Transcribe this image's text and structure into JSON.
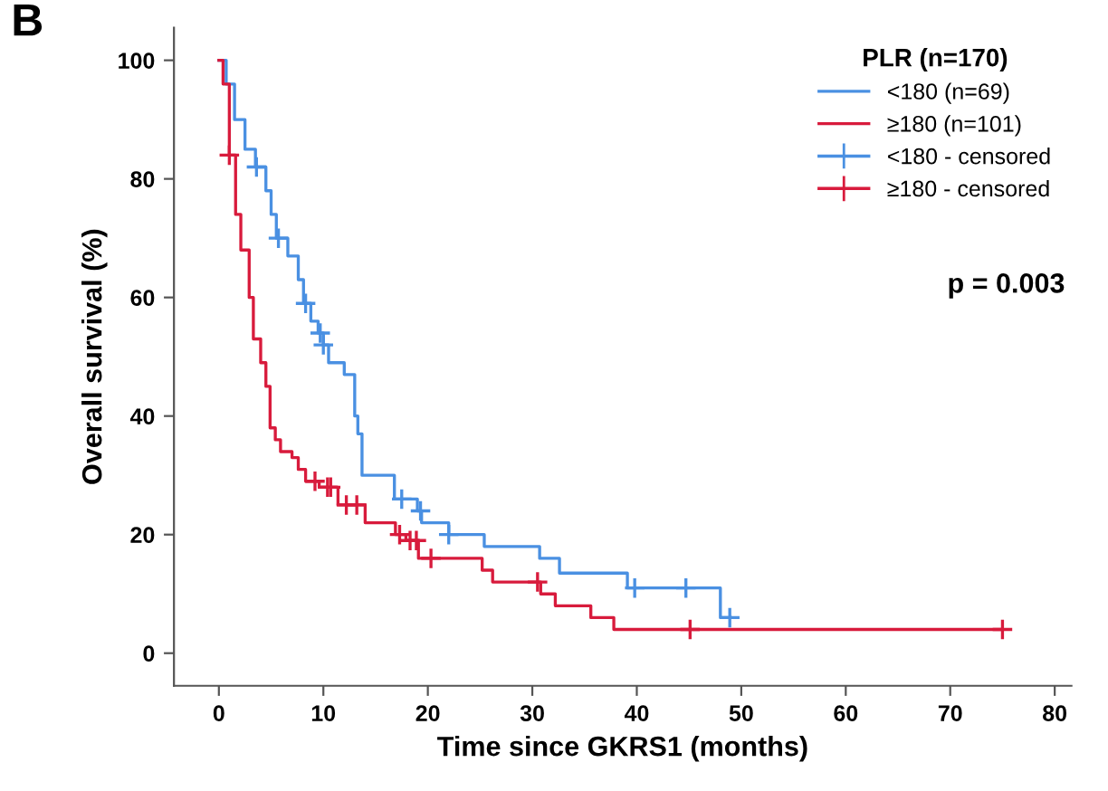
{
  "chart_data": {
    "type": "step",
    "xlabel": "Time since GKRS1 (months)",
    "ylabel": "Overall survival (%)",
    "legend_title": "PLR (n=170)",
    "annotations": [
      "B",
      "p = 0.003"
    ],
    "series": [
      {
        "name": "<180 (n=69)",
        "color": "#4a90e2",
        "x": [
          0,
          0.7,
          1.5,
          2.5,
          3.5,
          4.5,
          5.0,
          5.5,
          6.6,
          7.6,
          8.1,
          8.8,
          9.5,
          10.0,
          10.5,
          12.0,
          13.0,
          13.3,
          13.7,
          16.8,
          19.0,
          19.4,
          22.0,
          25.4,
          30.7,
          32.6,
          39.1,
          48.0,
          49.0
        ],
        "values": [
          100,
          96,
          90,
          85,
          82,
          78,
          74,
          70,
          67,
          63,
          59,
          56,
          54,
          52,
          49,
          47,
          40,
          37,
          30,
          26,
          24,
          22,
          20,
          18,
          16,
          13.5,
          11,
          6,
          6
        ]
      },
      {
        "name": "≥180 (n=101)",
        "color": "#d81b3c",
        "x": [
          0,
          0.4,
          1.0,
          1.6,
          2.1,
          2.9,
          3.3,
          4.0,
          4.5,
          4.9,
          5.4,
          5.9,
          7.0,
          7.6,
          8.3,
          9.6,
          11.4,
          14.0,
          16.9,
          17.9,
          19.1,
          25.2,
          26.2,
          30.8,
          32.2,
          35.6,
          37.8,
          75
        ],
        "values": [
          100,
          96,
          84,
          74,
          68,
          60,
          53,
          49,
          45,
          38,
          36,
          34,
          33,
          31,
          29,
          28,
          25,
          22,
          20,
          19,
          16,
          14,
          12,
          10,
          8,
          6,
          4,
          4
        ]
      },
      {
        "name": "<180 - censored",
        "color": "#4a90e2",
        "type": "scatter",
        "marker": "cross",
        "x": [
          3.6,
          5.7,
          8.3,
          9.7,
          10.0,
          17.5,
          19.3,
          22.0,
          39.8,
          44.7,
          48.9
        ],
        "values": [
          82,
          70,
          59,
          54,
          52,
          26,
          24,
          20,
          11,
          11,
          6
        ]
      },
      {
        "name": "≥180 - censored",
        "color": "#d81b3c",
        "type": "scatter",
        "marker": "cross",
        "x": [
          1.0,
          9.2,
          10.4,
          10.7,
          12.2,
          13.2,
          17.3,
          18.3,
          18.9,
          20.3,
          30.5,
          45.1,
          75
        ],
        "values": [
          84,
          29,
          28,
          28,
          25,
          25,
          20,
          19,
          19,
          16,
          12,
          4,
          4
        ]
      }
    ],
    "xlim": [
      -4.3,
      81.6
    ],
    "ylim": [
      -5.5,
      105.5
    ],
    "xticks": [
      0,
      10,
      20,
      30,
      40,
      50,
      60,
      70,
      80
    ],
    "yticks": [
      0,
      20,
      40,
      60,
      80,
      100
    ],
    "grid": false,
    "legend": "top right"
  }
}
